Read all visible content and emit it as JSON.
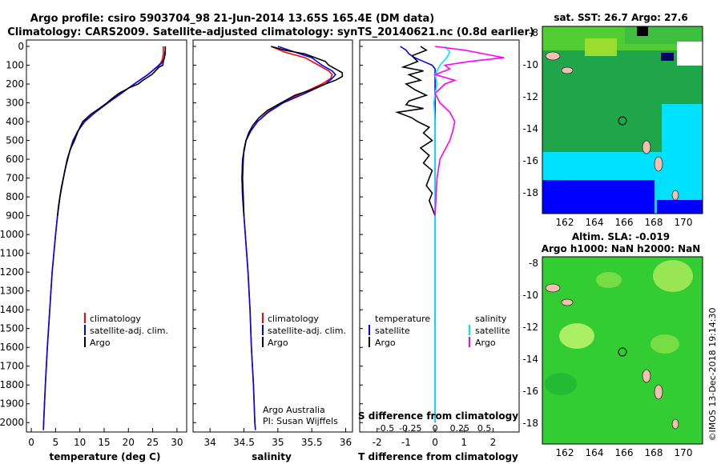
{
  "header": {
    "line1": "Argo profile: csiro 5903704_98 21-Jun-2014 13.65S 165.4E (DM data)",
    "line2": "Climatology: CARS2009. Satellite-adjusted climatology: synTS_20140621.nc (0.8d earlier)"
  },
  "colors": {
    "climatology": "#ff0000",
    "satellite": "#0000ff",
    "argo": "#000000",
    "satellite_s": "#00e5ff",
    "argo_s": "#ff00ff"
  },
  "credits": {
    "line1": "Argo Australia",
    "line2": "PI: Susan Wijffels",
    "stamp": "©IMOS 13-Dec-2018 19:14:30"
  },
  "map_top": {
    "title": "sat. SST: 26.7 Argo: 27.6",
    "xticks": [
      "162",
      "164",
      "166",
      "168",
      "170"
    ],
    "yticks": [
      "-8",
      "-10",
      "-12",
      "-14",
      "-16",
      "-18"
    ]
  },
  "map_bottom": {
    "title1": "Altim. SLA: -0.019",
    "title2": "Argo h1000: NaN h2000: NaN",
    "xticks": [
      "162",
      "164",
      "166",
      "168",
      "170"
    ],
    "yticks": [
      "-8",
      "-10",
      "-12",
      "-14",
      "-16",
      "-18"
    ]
  },
  "chart_data": [
    {
      "type": "line",
      "xlabel": "temperature (deg C)",
      "ylim": [
        2050,
        0
      ],
      "xlim": [
        -1,
        32
      ],
      "xticks": [
        "0",
        "5",
        "10",
        "15",
        "20",
        "25",
        "30"
      ],
      "yticks": [
        "0",
        "100",
        "200",
        "300",
        "400",
        "500",
        "600",
        "700",
        "800",
        "900",
        "1000",
        "1100",
        "1200",
        "1300",
        "1400",
        "1500",
        "1600",
        "1700",
        "1800",
        "1900",
        "2000"
      ],
      "legend": [
        "climatology",
        "satellite-adj. clim.",
        "Argo"
      ],
      "series": [
        {
          "name": "climatology",
          "depth": [
            0,
            40,
            70,
            90,
            110,
            150,
            200,
            250,
            300,
            350,
            400,
            450,
            500,
            600,
            700,
            800,
            900,
            1000,
            1200,
            1400,
            1600,
            1800,
            2000,
            2040
          ],
          "values": [
            27.2,
            27.2,
            27.0,
            26.6,
            25.8,
            24.0,
            21.2,
            18.5,
            15.8,
            13.2,
            11.0,
            9.6,
            8.6,
            7.4,
            6.6,
            5.9,
            5.4,
            5.0,
            4.3,
            3.8,
            3.3,
            2.9,
            2.55,
            2.5
          ]
        },
        {
          "name": "satellite-adj. clim.",
          "depth": [
            0,
            40,
            70,
            90,
            110,
            150,
            200,
            250,
            300,
            350,
            400,
            450,
            500,
            600,
            700,
            800,
            900,
            1000,
            1200,
            1400,
            1600,
            1800,
            2000,
            2040
          ],
          "values": [
            27.6,
            27.6,
            27.3,
            26.8,
            25.9,
            24.0,
            21.2,
            18.5,
            15.8,
            13.2,
            11.0,
            9.6,
            8.6,
            7.4,
            6.6,
            5.9,
            5.4,
            5.0,
            4.3,
            3.8,
            3.3,
            2.9,
            2.55,
            2.5
          ]
        },
        {
          "name": "Argo",
          "depth": [
            0,
            20,
            40,
            60,
            80,
            100,
            110,
            130,
            150,
            180,
            200,
            220,
            250,
            280,
            300,
            330,
            360,
            400,
            430,
            460,
            500,
            550,
            600,
            650,
            700,
            750,
            800,
            850,
            900
          ],
          "values": [
            27.6,
            27.6,
            27.5,
            27.4,
            27.2,
            27.1,
            26.3,
            25.6,
            24.8,
            23.0,
            22.0,
            20.2,
            18.0,
            16.5,
            15.6,
            14.0,
            12.3,
            10.6,
            10.0,
            9.5,
            8.9,
            8.0,
            7.5,
            7.0,
            6.6,
            6.2,
            5.9,
            5.6,
            5.4
          ]
        }
      ]
    },
    {
      "type": "line",
      "xlabel": "salinity",
      "ylim": [
        2050,
        0
      ],
      "xlim": [
        33.75,
        36.1
      ],
      "xticks": [
        "34",
        "34.5",
        "35",
        "35.5",
        "36"
      ],
      "legend": [
        "climatology",
        "satellite-adj. clim.",
        "Argo"
      ],
      "series": [
        {
          "name": "climatology",
          "depth": [
            0,
            30,
            60,
            100,
            130,
            150,
            170,
            200,
            250,
            300,
            350,
            400,
            450,
            500,
            600,
            700,
            800,
            900,
            1000,
            1200,
            1400,
            1600,
            1800,
            2000,
            2040
          ],
          "values": [
            34.9,
            35.1,
            35.4,
            35.6,
            35.75,
            35.8,
            35.78,
            35.65,
            35.35,
            35.05,
            34.85,
            34.7,
            34.6,
            34.53,
            34.48,
            34.47,
            34.48,
            34.5,
            34.52,
            34.56,
            34.59,
            34.61,
            34.64,
            34.66,
            34.67
          ]
        },
        {
          "name": "satellite-adj. clim.",
          "depth": [
            0,
            30,
            60,
            100,
            130,
            150,
            170,
            200,
            250,
            300,
            350,
            400,
            450,
            500,
            600,
            700,
            800,
            900,
            1000,
            1200,
            1400,
            1600,
            1800,
            2000,
            2040
          ],
          "values": [
            35.0,
            35.25,
            35.5,
            35.65,
            35.8,
            35.85,
            35.8,
            35.7,
            35.4,
            35.08,
            34.86,
            34.7,
            34.6,
            34.53,
            34.48,
            34.47,
            34.48,
            34.5,
            34.52,
            34.56,
            34.59,
            34.61,
            34.64,
            34.66,
            34.67
          ]
        },
        {
          "name": "Argo",
          "depth": [
            0,
            20,
            40,
            60,
            80,
            100,
            120,
            140,
            160,
            180,
            200,
            230,
            260,
            300,
            340,
            380,
            420,
            460,
            500,
            550,
            600,
            700,
            800,
            900
          ],
          "values": [
            34.9,
            35.1,
            35.4,
            35.55,
            35.7,
            35.75,
            35.85,
            35.95,
            35.95,
            35.85,
            35.7,
            35.5,
            35.25,
            35.05,
            34.85,
            34.72,
            34.63,
            34.57,
            34.53,
            34.5,
            34.49,
            34.48,
            34.49,
            34.5
          ]
        }
      ]
    },
    {
      "type": "line",
      "xlabel": "T difference from climatology",
      "xlabel_top": "S difference from climatology",
      "ylim": [
        2050,
        0
      ],
      "xlim": [
        -2.6,
        2.9
      ],
      "xticks": [
        "-2",
        "-1",
        "0",
        "1",
        "2"
      ],
      "xticks_top": [
        "-0.5",
        "-0.25",
        "0",
        "0.25",
        "0.5"
      ],
      "legend_left_title": "temperature",
      "legend_right_title": "salinity",
      "legend_left": [
        "satellite",
        "Argo"
      ],
      "legend_right": [
        "satellite",
        "Argo"
      ],
      "series": [
        {
          "name": "T satellite",
          "depth": [
            0,
            20,
            40,
            60,
            80,
            100,
            120,
            150,
            200,
            300,
            400,
            500,
            600,
            800,
            1000,
            1500,
            2000
          ],
          "values": [
            -1.2,
            -1.0,
            -0.9,
            -0.7,
            -0.4,
            -0.1,
            0.0,
            0.0,
            0.0,
            0.0,
            0.0,
            0.0,
            0.0,
            0.0,
            0.0,
            0.0,
            0.0
          ]
        },
        {
          "name": "T Argo",
          "depth": [
            0,
            20,
            50,
            80,
            110,
            130,
            150,
            180,
            200,
            230,
            260,
            290,
            310,
            330,
            350,
            380,
            400,
            430,
            460,
            500,
            540,
            580,
            620,
            660,
            700,
            740,
            780,
            820,
            860,
            900
          ],
          "values": [
            -0.5,
            -0.3,
            -0.8,
            -0.6,
            -1.1,
            -0.4,
            -0.9,
            -0.5,
            -1.0,
            -0.7,
            -0.3,
            -0.9,
            -1.0,
            -0.4,
            -1.3,
            -0.8,
            -0.6,
            -0.2,
            -0.4,
            -0.1,
            -0.5,
            -0.2,
            -0.4,
            -0.1,
            -0.2,
            -0.3,
            -0.1,
            -0.2,
            -0.1,
            0.0
          ]
        },
        {
          "name": "S satellite",
          "depth": [
            0,
            30,
            60,
            100,
            150,
            200,
            250,
            300,
            400,
            500,
            600,
            800,
            1000,
            1500,
            2000
          ],
          "values": [
            0.1,
            0.15,
            0.12,
            0.05,
            0.0,
            0.02,
            0.0,
            -0.01,
            0.0,
            0.0,
            0.0,
            0.0,
            0.0,
            0.0,
            0.0
          ]
        },
        {
          "name": "S Argo",
          "depth": [
            0,
            20,
            40,
            60,
            80,
            100,
            120,
            150,
            180,
            200,
            250,
            300,
            350,
            400,
            450,
            500,
            550,
            600,
            700,
            800,
            900
          ],
          "values": [
            0.0,
            0.3,
            0.5,
            0.7,
            0.35,
            0.1,
            0.15,
            0.0,
            0.2,
            0.1,
            0.0,
            0.05,
            0.15,
            0.2,
            0.18,
            0.15,
            0.1,
            0.05,
            0.02,
            0.01,
            0.0
          ]
        }
      ]
    }
  ]
}
